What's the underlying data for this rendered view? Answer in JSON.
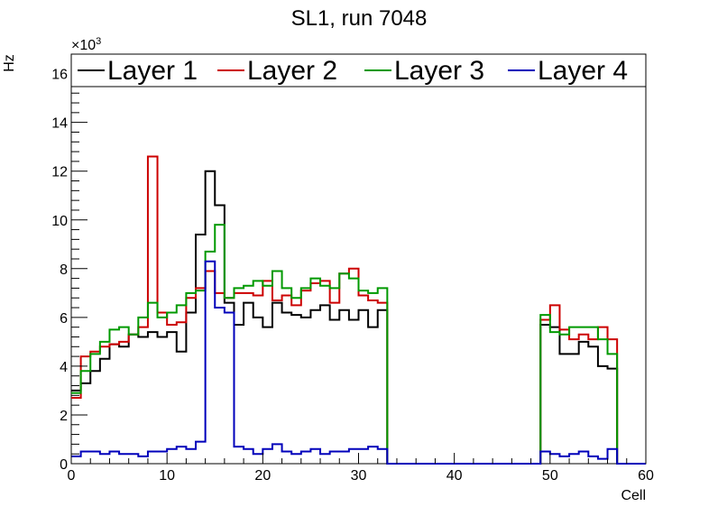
{
  "chart_data": {
    "type": "histogram-step",
    "title": "SL1, run 7048",
    "xlabel": "Cell",
    "ylabel": "Hz",
    "y_multiplier_label": "×10",
    "y_multiplier_exponent": "3",
    "xlim": [
      0,
      60
    ],
    "ylim": [
      0,
      16.8
    ],
    "x_ticks": [
      0,
      10,
      20,
      30,
      40,
      50,
      60
    ],
    "x_tick_labels": [
      "0",
      "10",
      "20",
      "30",
      "40",
      "50",
      "60"
    ],
    "y_ticks": [
      0,
      2,
      4,
      6,
      8,
      10,
      12,
      14,
      16
    ],
    "y_tick_labels": [
      "0",
      "2",
      "4",
      "6",
      "8",
      "10",
      "12",
      "14",
      "16"
    ],
    "bin_edges_start": 0,
    "bin_width": 1,
    "legend_position": "top-full-width",
    "series": [
      {
        "name": "Layer 1",
        "color": "#000000",
        "values": [
          3.0,
          3.3,
          3.8,
          4.3,
          4.9,
          4.8,
          5.3,
          5.2,
          5.4,
          5.2,
          5.4,
          4.6,
          6.2,
          9.4,
          12.0,
          10.6,
          6.6,
          5.7,
          6.6,
          6.0,
          5.6,
          6.6,
          6.2,
          6.1,
          6.0,
          6.3,
          6.5,
          5.9,
          6.3,
          5.9,
          6.3,
          5.6,
          6.3,
          0,
          0,
          0,
          0,
          0,
          0,
          0,
          0,
          0,
          0,
          0,
          0,
          0,
          0,
          0,
          0,
          5.7,
          5.6,
          4.5,
          4.5,
          5.0,
          4.8,
          4.0,
          3.9,
          0,
          0,
          0
        ]
      },
      {
        "name": "Layer 2",
        "color": "#cc0000",
        "values": [
          2.7,
          4.4,
          4.6,
          4.8,
          4.9,
          5.0,
          5.3,
          5.6,
          12.6,
          6.2,
          5.7,
          5.8,
          6.8,
          7.2,
          7.9,
          7.0,
          6.8,
          7.0,
          7.0,
          6.9,
          7.5,
          6.7,
          6.9,
          6.5,
          7.1,
          7.4,
          7.5,
          6.6,
          7.8,
          8.0,
          6.9,
          6.7,
          6.6,
          0,
          0,
          0,
          0,
          0,
          0,
          0,
          0,
          0,
          0,
          0,
          0,
          0,
          0,
          0,
          0,
          5.9,
          6.5,
          5.5,
          5.1,
          5.3,
          5.1,
          5.6,
          5.1,
          0,
          0,
          0
        ]
      },
      {
        "name": "Layer 3",
        "color": "#009900",
        "values": [
          2.9,
          3.8,
          4.5,
          5.0,
          5.5,
          5.6,
          5.3,
          6.0,
          6.6,
          6.0,
          6.2,
          6.5,
          7.0,
          7.1,
          8.7,
          9.8,
          6.8,
          7.2,
          7.3,
          7.5,
          7.3,
          7.9,
          7.2,
          6.8,
          7.2,
          7.6,
          7.3,
          7.2,
          7.8,
          7.6,
          7.1,
          7.0,
          7.2,
          0,
          0,
          0,
          0,
          0,
          0,
          0,
          0,
          0,
          0,
          0,
          0,
          0,
          0,
          0,
          0,
          6.1,
          5.4,
          5.3,
          5.6,
          5.6,
          5.6,
          5.1,
          4.5,
          0,
          0,
          0
        ]
      },
      {
        "name": "Layer 4",
        "color": "#0000bb",
        "values": [
          0.3,
          0.5,
          0.5,
          0.4,
          0.5,
          0.4,
          0.4,
          0.3,
          0.5,
          0.5,
          0.6,
          0.7,
          0.6,
          0.9,
          8.3,
          6.4,
          6.2,
          0.7,
          0.6,
          0.4,
          0.6,
          0.8,
          0.5,
          0.4,
          0.5,
          0.6,
          0.4,
          0.5,
          0.5,
          0.6,
          0.6,
          0.7,
          0.6,
          0,
          0,
          0,
          0,
          0,
          0,
          0,
          0,
          0,
          0,
          0,
          0,
          0,
          0,
          0,
          0,
          0.5,
          0.4,
          0.3,
          0.4,
          0.5,
          0.3,
          0.2,
          0.6,
          0,
          0,
          0
        ]
      }
    ]
  }
}
